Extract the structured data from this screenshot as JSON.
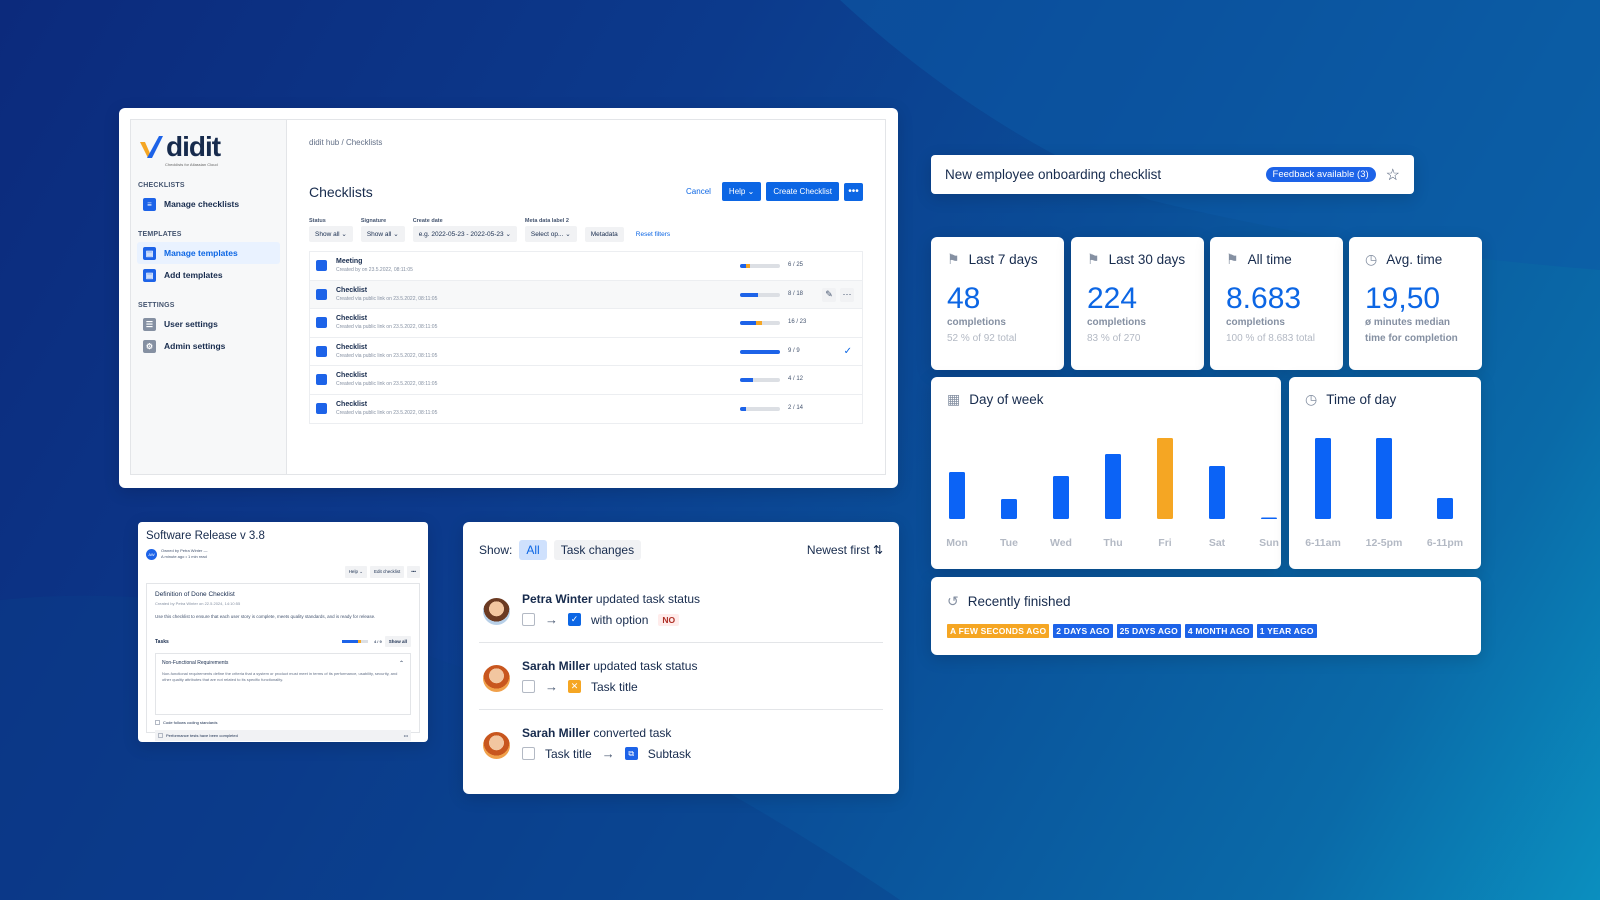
{
  "app": {
    "logo_text": "didit",
    "logo_sub": "Checklists for Atlassian Cloud",
    "sidebar": {
      "sections": [
        {
          "heading": "CHECKLISTS",
          "items": [
            {
              "label": "Manage checklists",
              "active": false
            }
          ]
        },
        {
          "heading": "TEMPLATES",
          "items": [
            {
              "label": "Manage templates",
              "active": true
            },
            {
              "label": "Add templates",
              "active": false
            }
          ]
        },
        {
          "heading": "SETTINGS",
          "items": [
            {
              "label": "User settings",
              "active": false
            },
            {
              "label": "Admin settings",
              "active": false
            }
          ]
        }
      ]
    },
    "breadcrumb": {
      "root": "didit hub",
      "sep": "/",
      "current": "Checklists"
    },
    "page_title": "Checklists",
    "buttons": {
      "cancel": "Cancel",
      "help": "Help",
      "create": "Create Checklist",
      "more": "•••"
    },
    "filters": {
      "status": {
        "label": "Status",
        "value": "Show all"
      },
      "signature": {
        "label": "Signature",
        "value": "Show all"
      },
      "create_date": {
        "label": "Create date",
        "value": "e.g. 2022-05-23 - 2022-05-23"
      },
      "meta": {
        "label": "Meta data label 2",
        "value": "Select op..."
      },
      "metadata_button": "Metadata",
      "reset": "Reset filters"
    },
    "rows": [
      {
        "title": "Meeting",
        "subtitle": "Created by on 23.5.2022, 08:11:05",
        "count": "6 / 25",
        "progress": 0.24,
        "orange": 0.08
      },
      {
        "title": "Checklist",
        "subtitle": "Created via public link on 23.5.2022, 08:11:05",
        "count": "8 / 18",
        "progress": 0.44,
        "orange": 0
      },
      {
        "title": "Checklist",
        "subtitle": "Created via public link on 23.5.2022, 08:11:05",
        "count": "16 / 23",
        "progress": 0.55,
        "orange": 0.15
      },
      {
        "title": "Checklist",
        "subtitle": "Created via public link on 23.5.2022, 08:11:05",
        "count": "9 / 9",
        "progress": 1.0,
        "orange": 0
      },
      {
        "title": "Checklist",
        "subtitle": "Created via public link on 23.5.2022, 08:11:05",
        "count": "4 / 12",
        "progress": 0.33,
        "orange": 0
      },
      {
        "title": "Checklist",
        "subtitle": "Created via public link on 23.5.2022, 08:11:05",
        "count": "2 / 14",
        "progress": 0.14,
        "orange": 0
      }
    ]
  },
  "onboarding": {
    "title": "New employee onboarding checklist",
    "badge": "Feedback available (3)"
  },
  "stats": [
    {
      "label": "Last 7 days",
      "value": "48",
      "unit": "completions",
      "sub": "52 % of 92 total"
    },
    {
      "label": "Last 30 days",
      "value": "224",
      "unit": "completions",
      "sub": "83 % of 270"
    },
    {
      "label": "All time",
      "value": "8.683",
      "unit": "completions",
      "sub": "100 % of 8.683 total"
    },
    {
      "label": "Avg. time",
      "value": "19,50",
      "unit": "ø minutes median",
      "sub": "time for completion"
    }
  ],
  "chart_data": [
    {
      "type": "bar",
      "title": "Day of week",
      "categories": [
        "Mon",
        "Tue",
        "Wed",
        "Thu",
        "Fri",
        "Sat",
        "Sun"
      ],
      "values": [
        47,
        20,
        43,
        65,
        81,
        53,
        1
      ],
      "highlight": "Fri",
      "colors": {
        "bar": "#0b63f6",
        "highlight": "#f5a623"
      },
      "ylim": [
        0,
        100
      ]
    },
    {
      "type": "bar",
      "title": "Time of day",
      "categories": [
        "6-11am",
        "12-5pm",
        "6-11pm"
      ],
      "values": [
        81,
        81,
        21
      ],
      "colors": {
        "bar": "#0b63f6"
      },
      "ylim": [
        0,
        100
      ]
    }
  ],
  "recent": {
    "title": "Recently finished",
    "pills": [
      {
        "label": "A FEW SECONDS AGO",
        "color": "orange"
      },
      {
        "label": "2 DAYS AGO",
        "color": "blue"
      },
      {
        "label": "25 DAYS AGO",
        "color": "blue"
      },
      {
        "label": "4 MONTH AGO",
        "color": "blue"
      },
      {
        "label": "1 YEAR AGO",
        "color": "blue"
      }
    ]
  },
  "software": {
    "title": "Software Release v 3.8",
    "avatar": "AW",
    "owner": "Owned by Petra Winter  —",
    "time": "A minute ago  •  1 min read",
    "help": "Help",
    "edit": "Edit checklist",
    "more": "•••",
    "box_title": "Definition of Done Checklist",
    "box_sub": "Created by Petra Winter on 22.5.2024, 14:10:55",
    "box_desc": "Use this checklist to ensure that each user story is complete, meets quality standards, and is ready for release.",
    "tasks_label": "Tasks",
    "tasks_count": "4 / 9",
    "show_all": "Show all",
    "nfr_title": "Non-Functional Requirements",
    "nfr_desc": "Non-functional requirements define the criteria that a system or product must meet in terms of its performance, usability, security, and other quality attributes that are not related to its specific functionality.",
    "item1": "Code follows coding standards",
    "item2": "Performance tests have been completed"
  },
  "activity": {
    "show_label": "Show:",
    "filters": [
      {
        "label": "All",
        "selected": true
      },
      {
        "label": "Task changes",
        "selected": false
      }
    ],
    "sort": "Newest first",
    "events": [
      {
        "user": "Petra Winter",
        "action": "updated task status",
        "target": "with option",
        "badge": "NO"
      },
      {
        "user": "Sarah Miller",
        "action": "updated task status",
        "target": "Task title"
      },
      {
        "user": "Sarah Miller",
        "action": "converted task",
        "from": "Task title",
        "target": "Subtask"
      }
    ]
  }
}
